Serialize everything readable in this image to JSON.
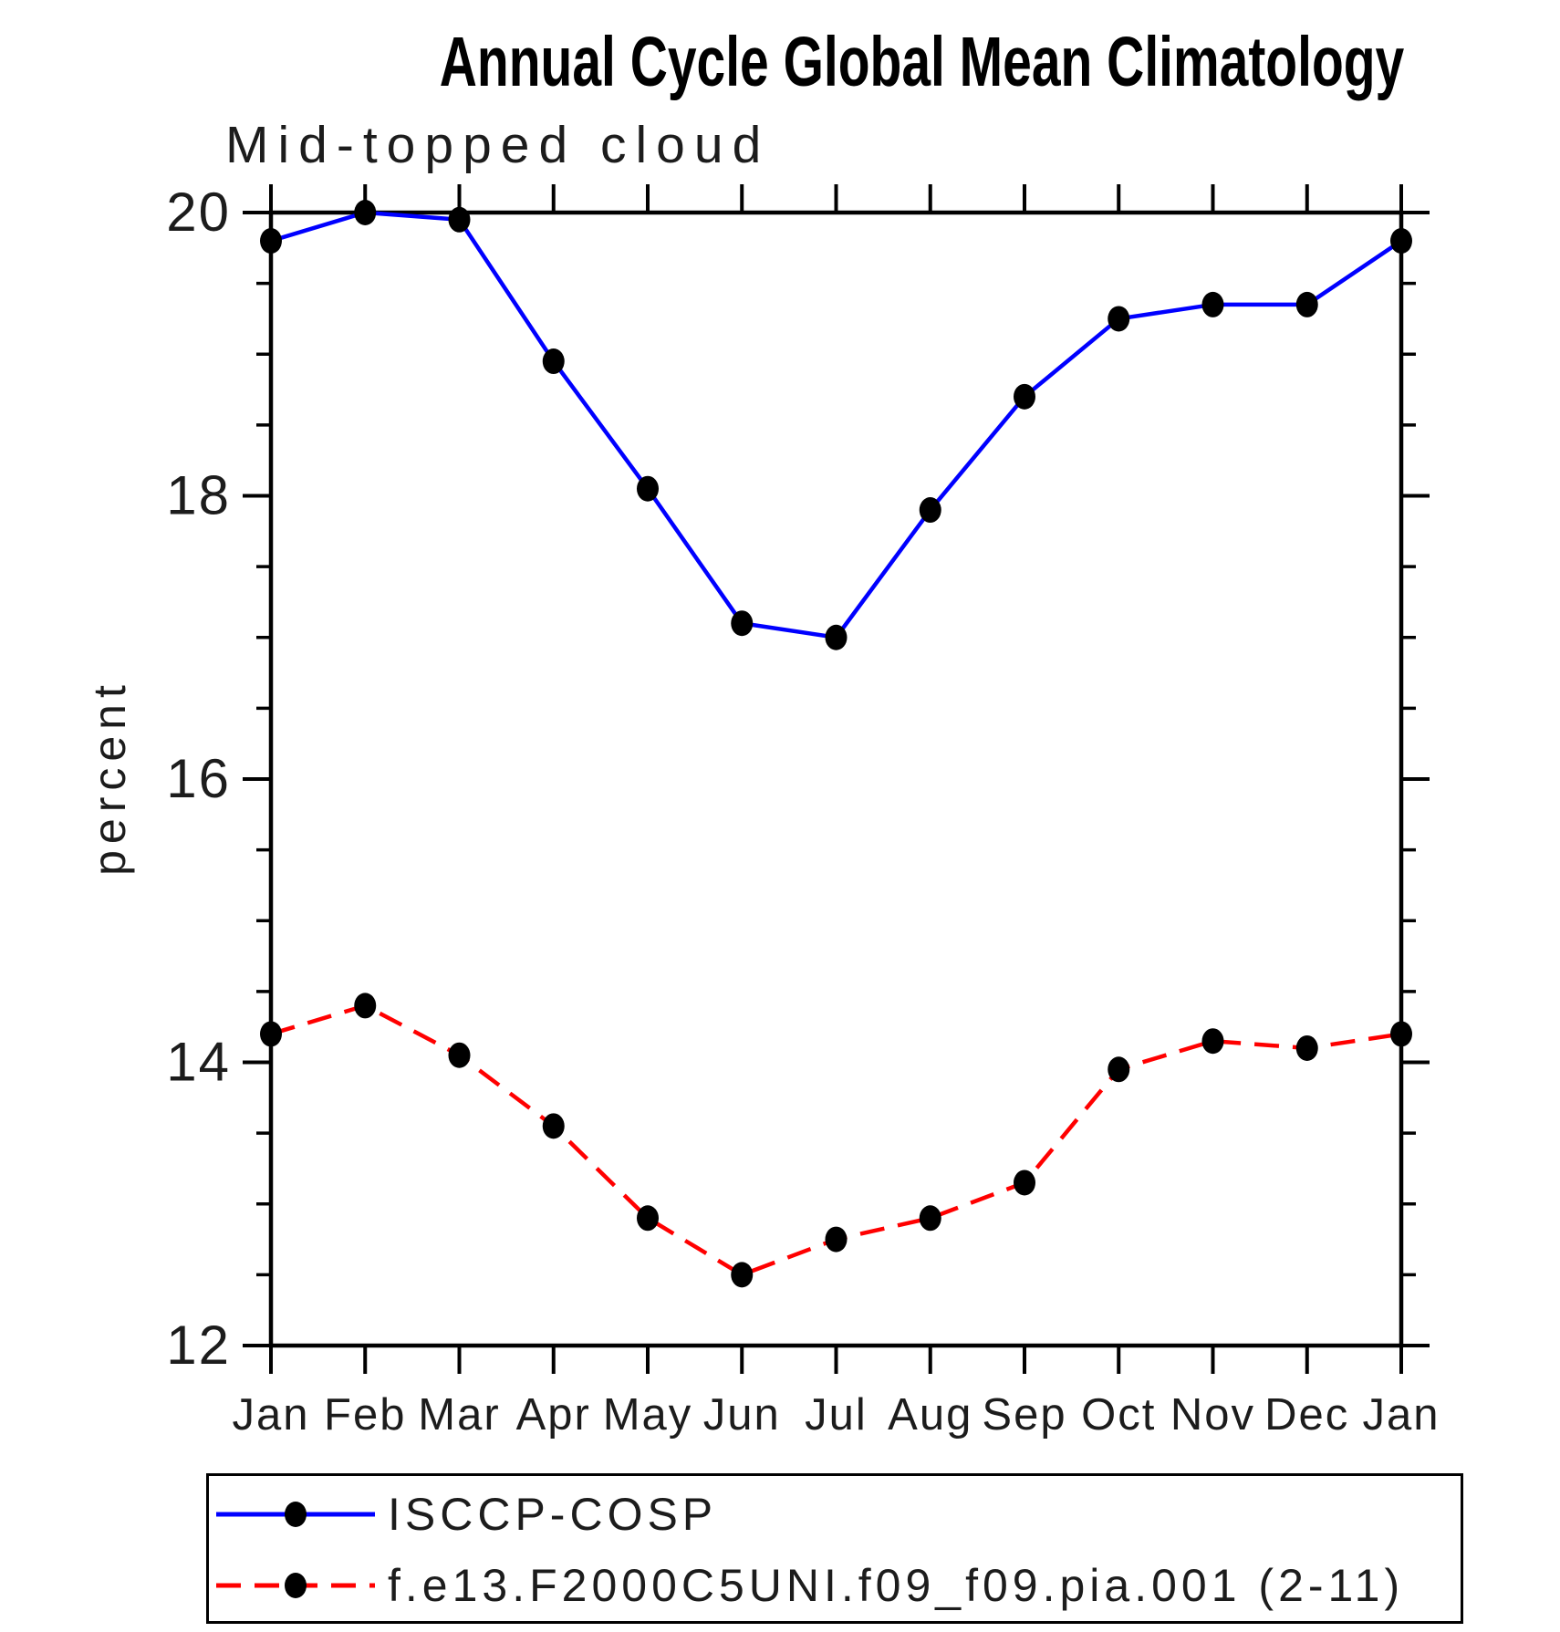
{
  "chart_data": {
    "type": "line",
    "title": "Annual Cycle Global Mean Climatology",
    "subtitle": "Mid-topped cloud",
    "xlabel": "",
    "ylabel": "percent",
    "categories": [
      "Jan",
      "Feb",
      "Mar",
      "Apr",
      "May",
      "Jun",
      "Jul",
      "Aug",
      "Sep",
      "Oct",
      "Nov",
      "Dec",
      "Jan"
    ],
    "ylim": [
      12,
      20
    ],
    "yticks_major": [
      12,
      14,
      16,
      18,
      20
    ],
    "ytick_minor_step": 0.5,
    "grid": false,
    "legend_position": "bottom-left-box",
    "axis_color": "#000000",
    "marker_color": "#000000",
    "series": [
      {
        "name": "ISCCP-COSP",
        "color": "#0000ff",
        "style": "solid",
        "marker": "filled-circle",
        "values": [
          19.8,
          20.0,
          19.95,
          18.95,
          18.05,
          17.1,
          17.0,
          17.9,
          18.7,
          19.25,
          19.35,
          19.35,
          19.8
        ]
      },
      {
        "name": "f.e13.F2000C5UNI.f09_f09.pia.001 (2-11)",
        "color": "#ff0000",
        "style": "dashed",
        "marker": "filled-circle",
        "values": [
          14.2,
          14.4,
          14.05,
          13.55,
          12.9,
          12.5,
          12.75,
          12.9,
          13.15,
          13.95,
          14.15,
          14.1,
          14.2
        ]
      }
    ]
  }
}
